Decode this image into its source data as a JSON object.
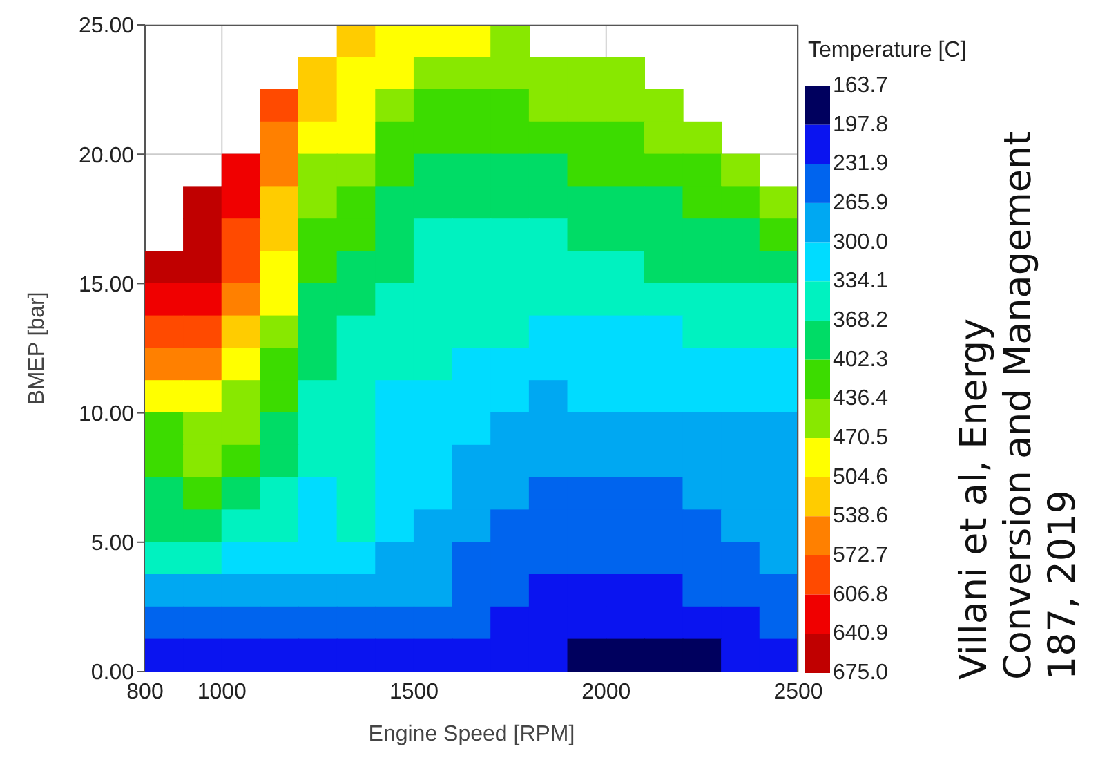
{
  "chart_data": {
    "type": "heatmap",
    "xlabel": "Engine Speed [RPM]",
    "ylabel": "BMEP [bar]",
    "clabel": "Temperature [C]",
    "annotations": [
      "Villani et al, Energy\nConversion and Management\n187, 2019"
    ],
    "xlim": [
      800,
      2500
    ],
    "xticks": [
      800,
      1000,
      1500,
      2000,
      2500
    ],
    "ylim": [
      0,
      25
    ],
    "yticks": [
      {
        "value": 0,
        "label": "0.00"
      },
      {
        "value": 5,
        "label": "5.00"
      },
      {
        "value": 10,
        "label": "10.00"
      },
      {
        "value": 15,
        "label": "15.00"
      },
      {
        "value": 20,
        "label": "20.00"
      },
      {
        "value": 25,
        "label": "25.00"
      }
    ],
    "grid": true,
    "clim": [
      675.0,
      163.7
    ],
    "cticks": [
      163.7,
      197.8,
      231.9,
      265.9,
      {
        "value": 300,
        "label": "300.0"
      },
      334.1,
      368.2,
      402.3,
      436.4,
      470.5,
      504.6,
      538.6,
      572.7,
      606.8,
      640.9,
      {
        "value": 675,
        "label": "675.0"
      }
    ],
    "colors": [
      "#00005e",
      "#0a14f0",
      "#0064ee",
      "#00a8f2",
      "#00dcff",
      "#00f2c0",
      "#00dc66",
      "#3cdc00",
      "#88e800",
      "#ffff00",
      "#ffcc00",
      "#ff8000",
      "#ff4a00",
      "#f00000",
      "#c00000"
    ],
    "cells": [
      [
        null,
        null,
        null,
        null,
        null,
        522,
        488,
        488,
        488,
        453,
        null,
        null,
        null,
        null,
        null,
        null,
        null
      ],
      [
        null,
        null,
        null,
        null,
        522,
        488,
        488,
        453,
        453,
        453,
        453,
        453,
        453,
        null,
        null,
        null,
        null
      ],
      [
        null,
        null,
        null,
        590,
        522,
        488,
        453,
        419,
        419,
        419,
        453,
        453,
        453,
        453,
        null,
        null,
        null
      ],
      [
        null,
        null,
        null,
        556,
        488,
        488,
        419,
        419,
        419,
        419,
        419,
        419,
        419,
        453,
        453,
        null,
        null
      ],
      [
        null,
        null,
        624,
        556,
        453,
        453,
        419,
        385,
        385,
        385,
        385,
        419,
        419,
        419,
        419,
        453,
        null
      ],
      [
        null,
        658,
        624,
        522,
        453,
        419,
        385,
        385,
        385,
        385,
        385,
        385,
        385,
        385,
        419,
        419,
        453
      ],
      [
        null,
        658,
        590,
        522,
        419,
        419,
        385,
        351,
        351,
        351,
        351,
        385,
        385,
        385,
        385,
        385,
        419
      ],
      [
        658,
        658,
        590,
        488,
        419,
        385,
        385,
        351,
        351,
        351,
        351,
        351,
        351,
        385,
        385,
        385,
        385
      ],
      [
        624,
        624,
        556,
        488,
        385,
        385,
        351,
        351,
        351,
        351,
        351,
        351,
        351,
        351,
        351,
        351,
        351
      ],
      [
        590,
        590,
        522,
        453,
        385,
        351,
        351,
        351,
        351,
        351,
        317,
        317,
        317,
        317,
        351,
        351,
        351
      ],
      [
        556,
        556,
        488,
        419,
        385,
        351,
        351,
        351,
        317,
        317,
        317,
        317,
        317,
        317,
        317,
        317,
        317
      ],
      [
        488,
        488,
        453,
        419,
        351,
        351,
        317,
        317,
        317,
        317,
        283,
        317,
        317,
        317,
        317,
        317,
        317
      ],
      [
        419,
        453,
        453,
        385,
        351,
        351,
        317,
        317,
        317,
        283,
        283,
        283,
        283,
        283,
        283,
        283,
        283
      ],
      [
        419,
        453,
        419,
        385,
        351,
        351,
        317,
        317,
        283,
        283,
        283,
        283,
        283,
        283,
        283,
        283,
        283
      ],
      [
        385,
        419,
        385,
        351,
        317,
        351,
        317,
        317,
        283,
        283,
        249,
        249,
        249,
        249,
        283,
        283,
        283
      ],
      [
        385,
        385,
        351,
        351,
        317,
        351,
        317,
        283,
        283,
        249,
        249,
        249,
        249,
        249,
        249,
        283,
        283
      ],
      [
        351,
        351,
        317,
        317,
        317,
        317,
        283,
        283,
        249,
        249,
        249,
        249,
        249,
        249,
        249,
        249,
        283
      ],
      [
        283,
        283,
        283,
        283,
        283,
        283,
        283,
        283,
        249,
        249,
        215,
        215,
        215,
        215,
        249,
        249,
        249
      ],
      [
        249,
        249,
        249,
        249,
        249,
        249,
        249,
        249,
        249,
        215,
        215,
        215,
        215,
        215,
        215,
        215,
        249
      ],
      [
        215,
        215,
        215,
        215,
        215,
        215,
        215,
        215,
        215,
        215,
        215,
        181,
        181,
        181,
        181,
        215,
        215
      ]
    ]
  }
}
